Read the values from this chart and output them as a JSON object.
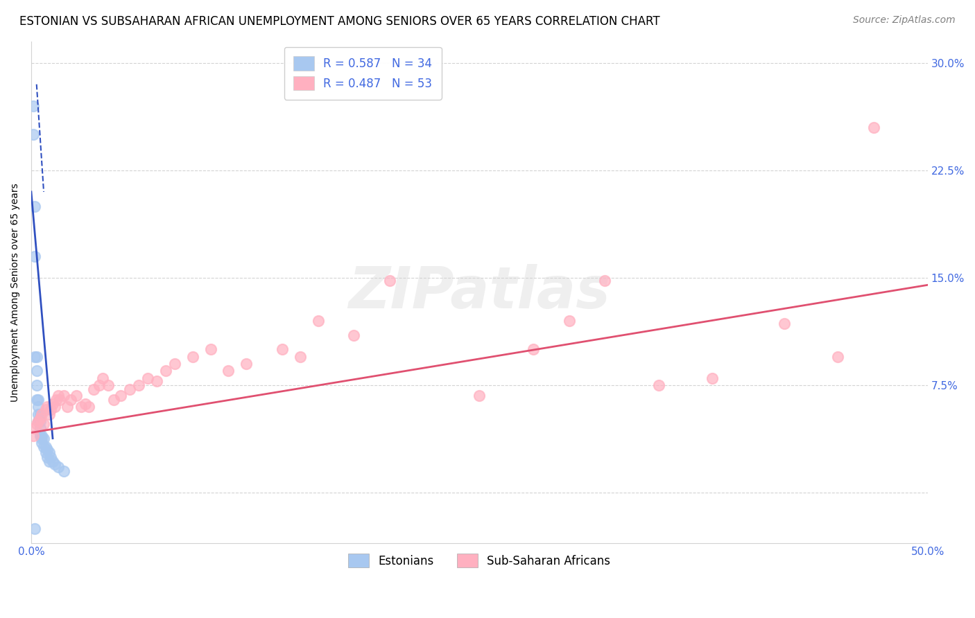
{
  "title": "ESTONIAN VS SUBSAHARAN AFRICAN UNEMPLOYMENT AMONG SENIORS OVER 65 YEARS CORRELATION CHART",
  "source": "Source: ZipAtlas.com",
  "ylabel": "Unemployment Among Seniors over 65 years",
  "xlim": [
    0.0,
    0.5
  ],
  "ylim": [
    -0.035,
    0.315
  ],
  "xticks": [
    0.0,
    0.1,
    0.2,
    0.3,
    0.4,
    0.5
  ],
  "yticks": [
    0.0,
    0.075,
    0.15,
    0.225,
    0.3
  ],
  "xticklabels": [
    "0.0%",
    "",
    "",
    "",
    "",
    "50.0%"
  ],
  "yticklabels": [
    "",
    "7.5%",
    "15.0%",
    "22.5%",
    "30.0%"
  ],
  "estonian_R": 0.587,
  "estonian_N": 34,
  "subsaharan_R": 0.487,
  "subsaharan_N": 53,
  "estonian_color": "#a8c8f0",
  "estonian_line_color": "#3050c0",
  "subsaharan_color": "#ffb0c0",
  "subsaharan_line_color": "#e05070",
  "legend_label_estonian": "Estonians",
  "legend_label_subsaharan": "Sub-Saharan Africans",
  "watermark_text": "ZIPatlas",
  "estonian_x": [
    0.001,
    0.001,
    0.002,
    0.002,
    0.002,
    0.003,
    0.003,
    0.003,
    0.003,
    0.004,
    0.004,
    0.004,
    0.004,
    0.005,
    0.005,
    0.005,
    0.005,
    0.006,
    0.006,
    0.006,
    0.007,
    0.007,
    0.008,
    0.008,
    0.009,
    0.009,
    0.01,
    0.01,
    0.011,
    0.012,
    0.013,
    0.015,
    0.018,
    0.002
  ],
  "estonian_y": [
    0.27,
    0.25,
    0.2,
    0.165,
    0.095,
    0.095,
    0.085,
    0.075,
    0.065,
    0.065,
    0.06,
    0.055,
    0.05,
    0.055,
    0.05,
    0.045,
    0.04,
    0.04,
    0.038,
    0.035,
    0.038,
    0.032,
    0.032,
    0.028,
    0.03,
    0.025,
    0.028,
    0.022,
    0.025,
    0.022,
    0.02,
    0.018,
    0.015,
    -0.025
  ],
  "subsaharan_x": [
    0.001,
    0.002,
    0.003,
    0.004,
    0.005,
    0.006,
    0.007,
    0.008,
    0.009,
    0.01,
    0.011,
    0.012,
    0.013,
    0.014,
    0.015,
    0.016,
    0.018,
    0.02,
    0.022,
    0.025,
    0.028,
    0.03,
    0.032,
    0.035,
    0.038,
    0.04,
    0.043,
    0.046,
    0.05,
    0.055,
    0.06,
    0.065,
    0.07,
    0.075,
    0.08,
    0.09,
    0.1,
    0.11,
    0.12,
    0.14,
    0.15,
    0.16,
    0.18,
    0.2,
    0.25,
    0.28,
    0.3,
    0.32,
    0.35,
    0.38,
    0.42,
    0.45,
    0.47
  ],
  "subsaharan_y": [
    0.04,
    0.045,
    0.048,
    0.05,
    0.052,
    0.055,
    0.048,
    0.058,
    0.06,
    0.055,
    0.058,
    0.062,
    0.06,
    0.065,
    0.068,
    0.065,
    0.068,
    0.06,
    0.065,
    0.068,
    0.06,
    0.062,
    0.06,
    0.072,
    0.075,
    0.08,
    0.075,
    0.065,
    0.068,
    0.072,
    0.075,
    0.08,
    0.078,
    0.085,
    0.09,
    0.095,
    0.1,
    0.085,
    0.09,
    0.1,
    0.095,
    0.12,
    0.11,
    0.148,
    0.068,
    0.1,
    0.12,
    0.148,
    0.075,
    0.08,
    0.118,
    0.095,
    0.255
  ],
  "title_fontsize": 12,
  "axis_label_fontsize": 10,
  "tick_fontsize": 11,
  "legend_fontsize": 12,
  "source_fontsize": 10
}
